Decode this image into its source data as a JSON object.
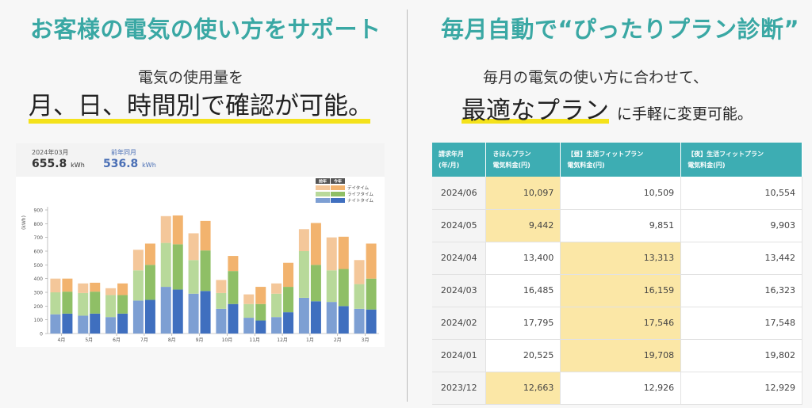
{
  "left": {
    "title": "お客様の電気の使い方をサポート",
    "subtitle": "電気の使用量を",
    "headline": "月、日、時間別で確認が可能。"
  },
  "right": {
    "title": "毎月自動で“ぴったりプラン診断”",
    "subtitle": "毎月の電気の使い方に合わせて、",
    "headline_emph": "最適なプラン",
    "headline_rest": "に手軽に変更可能。"
  },
  "usage": {
    "current_label": "2024年03月",
    "current_value": "655.8",
    "current_unit": "kWh",
    "prev_label": "前年同月",
    "prev_value": "536.8",
    "prev_unit": "kWh"
  },
  "colors": {
    "accent": "#3aa8a4",
    "underline": "#f4e21b",
    "day_this": "#f2b36e",
    "day_prev": "#f4c79a",
    "life_this": "#8fbf66",
    "life_prev": "#b8d99a",
    "night_this": "#3f6fbf",
    "night_prev": "#7d9fd3",
    "highlight": "#fbe7a6"
  },
  "chart_data": {
    "type": "bar",
    "ylabel": "(kWh)",
    "ylim": [
      0,
      900
    ],
    "yticks": [
      0,
      100,
      200,
      300,
      400,
      500,
      600,
      700,
      800,
      900
    ],
    "legend_headers": [
      "前年",
      "今年"
    ],
    "categories": [
      "4月",
      "5月",
      "6月",
      "7月",
      "8月",
      "9月",
      "10月",
      "11月",
      "12月",
      "1月",
      "2月",
      "3月"
    ],
    "series": [
      {
        "name": "ナイトタイム",
        "prev": [
          140,
          130,
          120,
          240,
          340,
          290,
          180,
          115,
          120,
          260,
          230,
          180
        ],
        "this": [
          145,
          145,
          145,
          245,
          320,
          310,
          215,
          95,
          155,
          235,
          200,
          175
        ]
      },
      {
        "name": "ライフタイム",
        "prev": [
          160,
          165,
          160,
          220,
          320,
          245,
          115,
          100,
          170,
          340,
          230,
          180
        ],
        "this": [
          160,
          160,
          135,
          255,
          330,
          295,
          240,
          120,
          185,
          265,
          270,
          225
        ]
      },
      {
        "name": "デイタイム",
        "prev": [
          100,
          70,
          50,
          150,
          195,
          195,
          95,
          70,
          75,
          160,
          240,
          175
        ],
        "this": [
          95,
          65,
          85,
          155,
          210,
          215,
          110,
          125,
          175,
          305,
          235,
          255
        ]
      }
    ]
  },
  "table": {
    "headers": [
      "請求年月\n(年/月)",
      "きほんプラン\n電気料金(円)",
      "【昼】生活フィットプラン\n電気料金(円)",
      "【夜】生活フィットプラン\n電気料金(円)"
    ],
    "rows": [
      {
        "month": "2024/06",
        "kihon": "10,097",
        "hiru": "10,509",
        "yoru": "10,554",
        "best": 1
      },
      {
        "month": "2024/05",
        "kihon": "9,442",
        "hiru": "9,851",
        "yoru": "9,903",
        "best": 1
      },
      {
        "month": "2024/04",
        "kihon": "13,400",
        "hiru": "13,313",
        "yoru": "13,442",
        "best": 2
      },
      {
        "month": "2024/03",
        "kihon": "16,485",
        "hiru": "16,159",
        "yoru": "16,323",
        "best": 2
      },
      {
        "month": "2024/02",
        "kihon": "17,795",
        "hiru": "17,546",
        "yoru": "17,548",
        "best": 2
      },
      {
        "month": "2024/01",
        "kihon": "20,525",
        "hiru": "19,708",
        "yoru": "19,802",
        "best": 2
      },
      {
        "month": "2023/12",
        "kihon": "12,663",
        "hiru": "12,926",
        "yoru": "12,929",
        "best": 1
      }
    ]
  }
}
